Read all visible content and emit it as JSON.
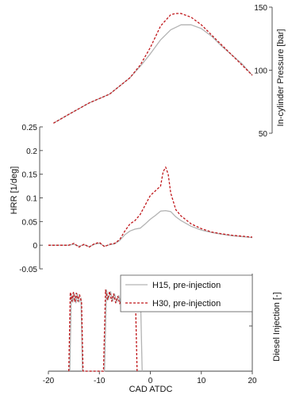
{
  "chart_data": [
    {
      "id": "pressure",
      "type": "line",
      "ylabel": "In-cylinder Pressure [bar]",
      "ylim": [
        50,
        150
      ],
      "yticks": [
        50,
        100,
        150
      ],
      "y_axis_side": "right",
      "xlim": [
        -20,
        20
      ],
      "series": [
        {
          "name": "H15, pre-injection",
          "color": "#b3b3b3",
          "dash": "solid",
          "x": [
            -19,
            -16,
            -12,
            -8,
            -4,
            -2,
            0,
            2,
            4,
            6,
            8,
            10,
            12,
            14,
            16,
            18,
            20
          ],
          "y": [
            58,
            65,
            74,
            81,
            94,
            103,
            113,
            124,
            132,
            136,
            136,
            133,
            127,
            119,
            112,
            105,
            96
          ]
        },
        {
          "name": "H30, pre-injection",
          "color": "#c0171b",
          "dash": "dashed",
          "x": [
            -19,
            -16,
            -12,
            -8,
            -4,
            -2,
            0,
            2,
            4,
            5,
            6,
            8,
            10,
            12,
            14,
            16,
            18,
            20
          ],
          "y": [
            58,
            65,
            74,
            81,
            94,
            104,
            118,
            135,
            144,
            145,
            145,
            142,
            136,
            128,
            120,
            112,
            104,
            96
          ]
        }
      ]
    },
    {
      "id": "hrr",
      "type": "line",
      "ylabel": "HRR [1/deg]",
      "ylim": [
        -0.05,
        0.25
      ],
      "yticks": [
        -0.05,
        0,
        0.05,
        0.1,
        0.15,
        0.2,
        0.25
      ],
      "ytick_labels": [
        "-0.05",
        "0",
        "0.05",
        "0.1",
        "0.15",
        "0.2",
        "0.25"
      ],
      "y_axis_side": "left",
      "xlim": [
        -20,
        20
      ],
      "series": [
        {
          "name": "H15, pre-injection",
          "color": "#b3b3b3",
          "dash": "solid",
          "x": [
            -20,
            -16,
            -15,
            -14,
            -13,
            -12,
            -11,
            -10,
            -9,
            -8,
            -7,
            -6,
            -5,
            -4,
            -3,
            -2,
            -1,
            0,
            1,
            2,
            3,
            4,
            5,
            6,
            8,
            10,
            12,
            14,
            16,
            18,
            20
          ],
          "y": [
            0,
            0,
            0.002,
            -0.002,
            0.001,
            -0.003,
            0.002,
            0.004,
            -0.002,
            0.001,
            0.003,
            0.01,
            0.022,
            0.03,
            0.034,
            0.036,
            0.045,
            0.055,
            0.063,
            0.072,
            0.073,
            0.071,
            0.06,
            0.052,
            0.04,
            0.032,
            0.027,
            0.023,
            0.02,
            0.018,
            0.016
          ]
        },
        {
          "name": "H30, pre-injection",
          "color": "#c0171b",
          "dash": "dashed",
          "x": [
            -20,
            -16,
            -15,
            -14,
            -13,
            -12,
            -11,
            -10,
            -9,
            -8,
            -7,
            -6,
            -5,
            -4,
            -3,
            -2,
            -1,
            0,
            1,
            2,
            2.5,
            3,
            3.5,
            4,
            5,
            6,
            8,
            10,
            12,
            14,
            16,
            18,
            20
          ],
          "y": [
            0,
            0,
            0.004,
            -0.004,
            0.002,
            -0.004,
            0.003,
            0.006,
            -0.003,
            0.002,
            0.004,
            0.012,
            0.03,
            0.045,
            0.052,
            0.065,
            0.085,
            0.105,
            0.115,
            0.125,
            0.155,
            0.165,
            0.15,
            0.11,
            0.075,
            0.062,
            0.045,
            0.035,
            0.028,
            0.024,
            0.021,
            0.019,
            0.017
          ]
        }
      ]
    },
    {
      "id": "injection",
      "type": "line",
      "xlabel": "CAD ATDC",
      "ylabel": "Diesel Injection [-]",
      "xlim": [
        -20,
        20
      ],
      "xticks": [
        -20,
        -10,
        0,
        10,
        20
      ],
      "ylim": [
        0,
        1.2
      ],
      "y_axis_side": "right",
      "legend": "top-right",
      "series": [
        {
          "name": "H15, pre-injection",
          "color": "#b3b3b3",
          "dash": "solid",
          "x": [
            -15.8,
            -15.5,
            -15.2,
            -14.9,
            -14.6,
            -14.3,
            -14.0,
            -13.6,
            -13.3,
            -9.0,
            -8.6,
            -8.2,
            -7.8,
            -7.4,
            -7.0,
            -6.6,
            -6.2,
            -5.8,
            -5.4,
            -5.0,
            -4.6,
            -4.2,
            -3.8,
            -3.4,
            -3.0,
            -2.6,
            -2.2,
            -1.9,
            -1.6
          ],
          "y": [
            0,
            0.95,
            0.85,
            0.96,
            0.84,
            0.95,
            0.85,
            0.9,
            0,
            0,
            1.0,
            0.88,
            0.98,
            0.86,
            0.95,
            0.85,
            0.93,
            0.84,
            0.9,
            0.82,
            0.88,
            0.8,
            0.86,
            0.8,
            0.85,
            0.8,
            0.85,
            0.83,
            0
          ]
        },
        {
          "name": "H30, pre-injection",
          "color": "#c0171b",
          "dash": "dashed",
          "x": [
            -16.0,
            -15.7,
            -15.4,
            -15.1,
            -14.8,
            -14.5,
            -14.2,
            -13.9,
            -13.5,
            -13.2,
            -9.2,
            -8.8,
            -8.4,
            -8.0,
            -7.6,
            -7.2,
            -6.8,
            -6.4,
            -6.0,
            -5.6,
            -5.2,
            -4.8,
            -4.4,
            -4.0,
            -3.6,
            -3.2,
            -2.9,
            -2.6
          ],
          "y": [
            0,
            0.97,
            0.86,
            0.97,
            0.85,
            0.96,
            0.86,
            0.94,
            0.85,
            0,
            0,
            1.0,
            0.88,
            0.98,
            0.86,
            0.95,
            0.84,
            0.92,
            0.83,
            0.9,
            0.82,
            0.88,
            0.8,
            0.84,
            0.8,
            0.84,
            0.82,
            0
          ]
        }
      ]
    }
  ]
}
